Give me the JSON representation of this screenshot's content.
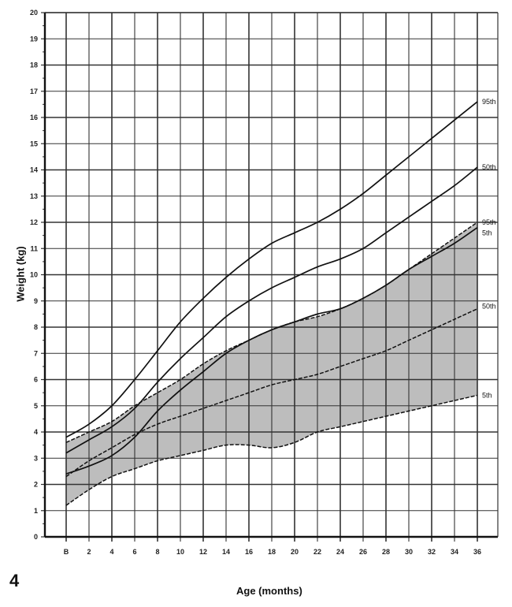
{
  "figure": {
    "number": "4"
  },
  "chart_data": {
    "type": "line",
    "title": "",
    "xlabel": "Age (months)",
    "ylabel": "Weight (kg)",
    "xlim": [
      0,
      36
    ],
    "ylim": [
      0,
      20
    ],
    "grid": true,
    "x_tick_labels": [
      "B",
      "2",
      "4",
      "6",
      "8",
      "10",
      "12",
      "14",
      "16",
      "18",
      "20",
      "22",
      "24",
      "26",
      "28",
      "30",
      "32",
      "34",
      "36"
    ],
    "y_tick_labels": [
      "0",
      "1",
      "2",
      "3",
      "4",
      "5",
      "6",
      "7",
      "8",
      "9",
      "10",
      "11",
      "12",
      "13",
      "14",
      "15",
      "16",
      "17",
      "18",
      "19",
      "20"
    ],
    "x": [
      0,
      2,
      4,
      6,
      8,
      10,
      12,
      14,
      16,
      18,
      20,
      22,
      24,
      26,
      28,
      30,
      32,
      34,
      36
    ],
    "series": [
      {
        "name": "95th",
        "style": "solid",
        "label": "95th",
        "values": [
          3.8,
          4.3,
          5.0,
          6.0,
          7.1,
          8.2,
          9.1,
          9.9,
          10.6,
          11.2,
          11.6,
          12.0,
          12.5,
          13.1,
          13.8,
          14.5,
          15.2,
          15.9,
          16.6
        ]
      },
      {
        "name": "50th",
        "style": "solid",
        "label": "50th",
        "values": [
          3.2,
          3.7,
          4.2,
          4.9,
          5.9,
          6.8,
          7.6,
          8.4,
          9.0,
          9.5,
          9.9,
          10.3,
          10.6,
          11.0,
          11.6,
          12.2,
          12.8,
          13.4,
          14.1
        ]
      },
      {
        "name": "5th",
        "style": "solid",
        "label": "5th",
        "values": [
          2.4,
          2.7,
          3.1,
          3.8,
          4.8,
          5.6,
          6.3,
          7.0,
          7.5,
          7.9,
          8.2,
          8.5,
          8.7,
          9.1,
          9.6,
          10.2,
          10.7,
          11.2,
          11.8
        ]
      },
      {
        "name": "95th (shaded band upper)",
        "style": "dashed",
        "label": "95th",
        "values": [
          3.6,
          4.0,
          4.4,
          5.0,
          5.5,
          6.0,
          6.6,
          7.1,
          7.5,
          7.9,
          8.2,
          8.4,
          8.7,
          9.1,
          9.6,
          10.2,
          10.8,
          11.4,
          12.0
        ]
      },
      {
        "name": "50th (shaded band)",
        "style": "dashed",
        "label": "50th",
        "values": [
          2.3,
          2.9,
          3.4,
          3.9,
          4.3,
          4.6,
          4.9,
          5.2,
          5.5,
          5.8,
          6.0,
          6.2,
          6.5,
          6.8,
          7.1,
          7.5,
          7.9,
          8.3,
          8.7
        ]
      },
      {
        "name": "5th (shaded band lower)",
        "style": "dashed",
        "label": "5th",
        "values": [
          1.2,
          1.8,
          2.3,
          2.6,
          2.9,
          3.1,
          3.3,
          3.5,
          3.5,
          3.4,
          3.6,
          4.0,
          4.2,
          4.4,
          4.6,
          4.8,
          5.0,
          5.2,
          5.4
        ]
      }
    ],
    "annotations": [
      {
        "text": "95th",
        "at_x": 36,
        "at_y": 16.6
      },
      {
        "text": "50th",
        "at_x": 36,
        "at_y": 14.1
      },
      {
        "text": "95th",
        "at_x": 36,
        "at_y": 12.0
      },
      {
        "text": "5th",
        "at_x": 36,
        "at_y": 11.6
      },
      {
        "text": "50th",
        "at_x": 36,
        "at_y": 8.8
      },
      {
        "text": "5th",
        "at_x": 36,
        "at_y": 5.4
      }
    ],
    "shaded_region": {
      "between": [
        "95th (shaded band upper)",
        "5th (shaded band lower)"
      ],
      "color": "#b8b8b8"
    }
  },
  "colors": {
    "grid": "#333333",
    "line": "#111111",
    "shade": "#bdbdbd"
  }
}
